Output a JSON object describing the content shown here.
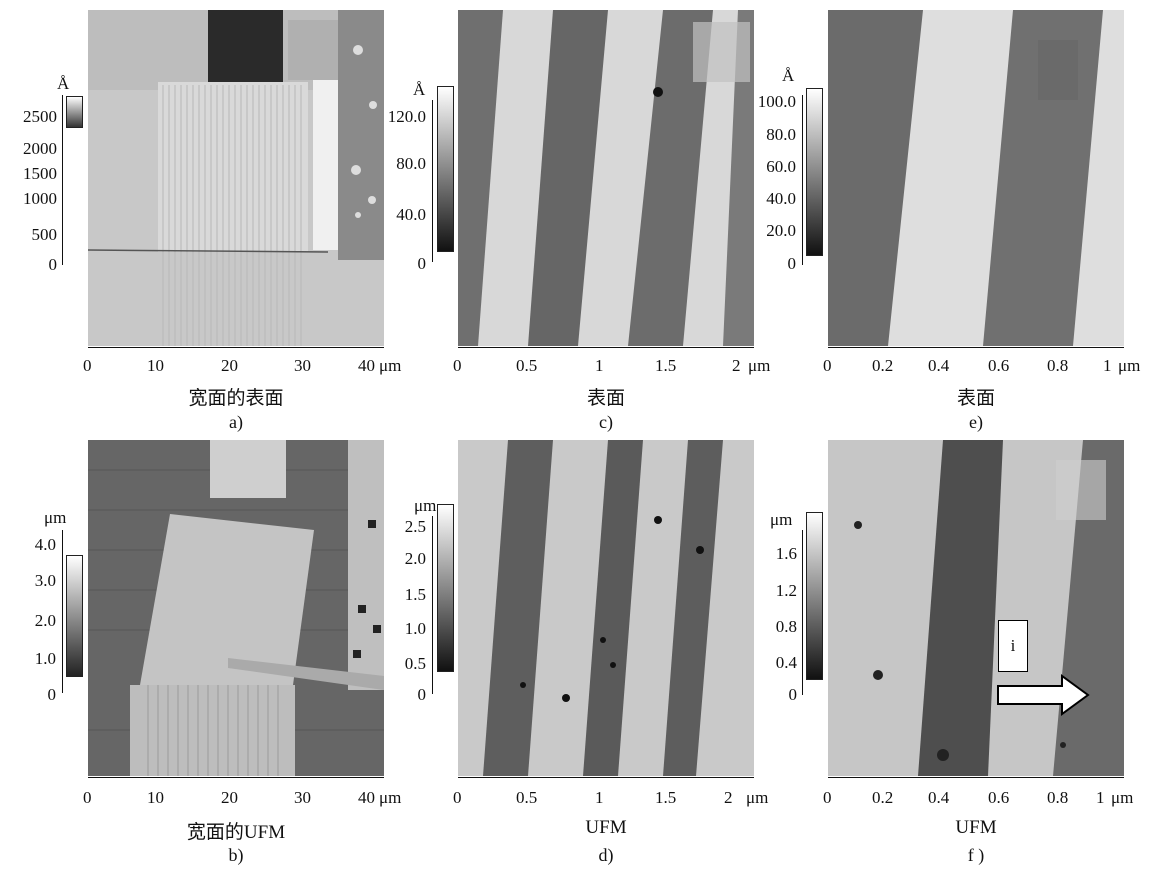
{
  "panels": {
    "a": {
      "caption": "宽面的表面",
      "letter": "a)",
      "unit": "Å",
      "scale": [
        "2500",
        "2000",
        "1500",
        "1000",
        "500",
        "0"
      ],
      "xticks": [
        "0",
        "10",
        "20",
        "30",
        "40"
      ],
      "xunit": "μm"
    },
    "b": {
      "caption": "宽面的UFM",
      "letter": "b)",
      "unit": "μm",
      "scale": [
        "4.0",
        "3.0",
        "2.0",
        "1.0",
        "0"
      ],
      "xticks": [
        "0",
        "10",
        "20",
        "30",
        "40"
      ],
      "xunit": "μm"
    },
    "c": {
      "caption": "表面",
      "letter": "c)",
      "unit": "Å",
      "scale": [
        "120.0",
        "80.0",
        "40.0",
        "0"
      ],
      "xticks": [
        "0",
        "0.5",
        "1",
        "1.5",
        "2"
      ],
      "xunit": "μm"
    },
    "d": {
      "caption": "UFM",
      "letter": "d)",
      "unit": "μm",
      "scale": [
        "2.5",
        "2.0",
        "1.5",
        "1.0",
        "0.5",
        "0"
      ],
      "xticks": [
        "0",
        "0.5",
        "1",
        "1.5",
        "2"
      ],
      "xunit": "μm"
    },
    "e": {
      "caption": "表面",
      "letter": "e)",
      "unit": "Å",
      "scale": [
        "100.0",
        "80.0",
        "60.0",
        "40.0",
        "20.0",
        "0"
      ],
      "xticks": [
        "0",
        "0.2",
        "0.4",
        "0.6",
        "0.8",
        "1"
      ],
      "xunit": "μm"
    },
    "f": {
      "caption": "UFM",
      "letter": "f )",
      "unit": "μm",
      "scale": [
        "1.6",
        "1.2",
        "0.8",
        "0.4",
        "0"
      ],
      "xticks": [
        "0",
        "0.2",
        "0.4",
        "0.6",
        "0.8",
        "1"
      ],
      "xunit": "μm",
      "marker": "i"
    }
  }
}
